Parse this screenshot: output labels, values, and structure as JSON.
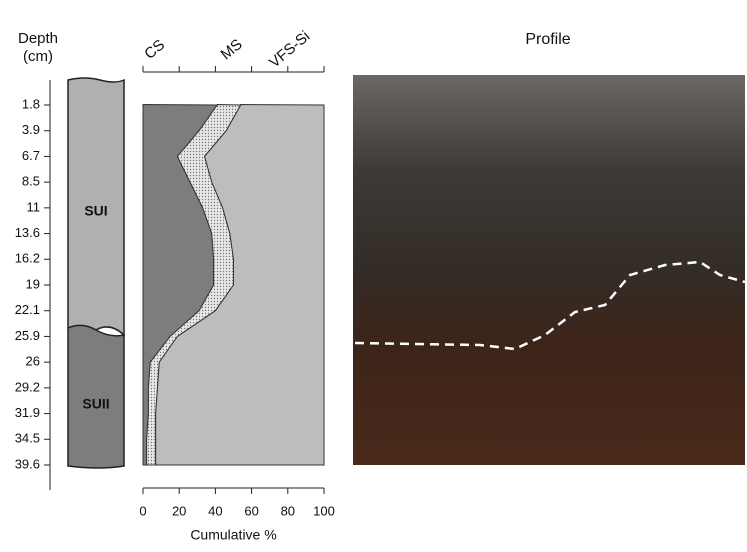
{
  "chart_data": {
    "type": "stacked-area",
    "ylabel": "Depth (cm)",
    "categories": [
      "1.8",
      "3.9",
      "6.7",
      "8.5",
      "11",
      "13.6",
      "16.2",
      "19",
      "22.1",
      "25.9",
      "26",
      "29.2",
      "31.9",
      "34.5",
      "39.6"
    ],
    "series": [
      {
        "name": "CS",
        "color": "#7d7d7d",
        "values": [
          41,
          31,
          19,
          26,
          33,
          38,
          39,
          39,
          31,
          15,
          4,
          3,
          3,
          2,
          2
        ]
      },
      {
        "name": "MS",
        "color": "#dcdcdc",
        "values": [
          13,
          15,
          15,
          12,
          11,
          10,
          11,
          11,
          9,
          4,
          5,
          5,
          4,
          5,
          5
        ]
      },
      {
        "name": "VFS-Si",
        "color": "#bdbdbd",
        "values": [
          46,
          54,
          66,
          62,
          56,
          52,
          50,
          50,
          60,
          81,
          91,
          92,
          93,
          93,
          93
        ]
      }
    ],
    "xlabel": "Cumulative %",
    "xlim": [
      0,
      100
    ],
    "xticks": [
      0,
      20,
      40,
      60,
      80,
      100
    ],
    "units": [
      "SUI",
      "SUII"
    ],
    "photo_title": "Profile"
  }
}
